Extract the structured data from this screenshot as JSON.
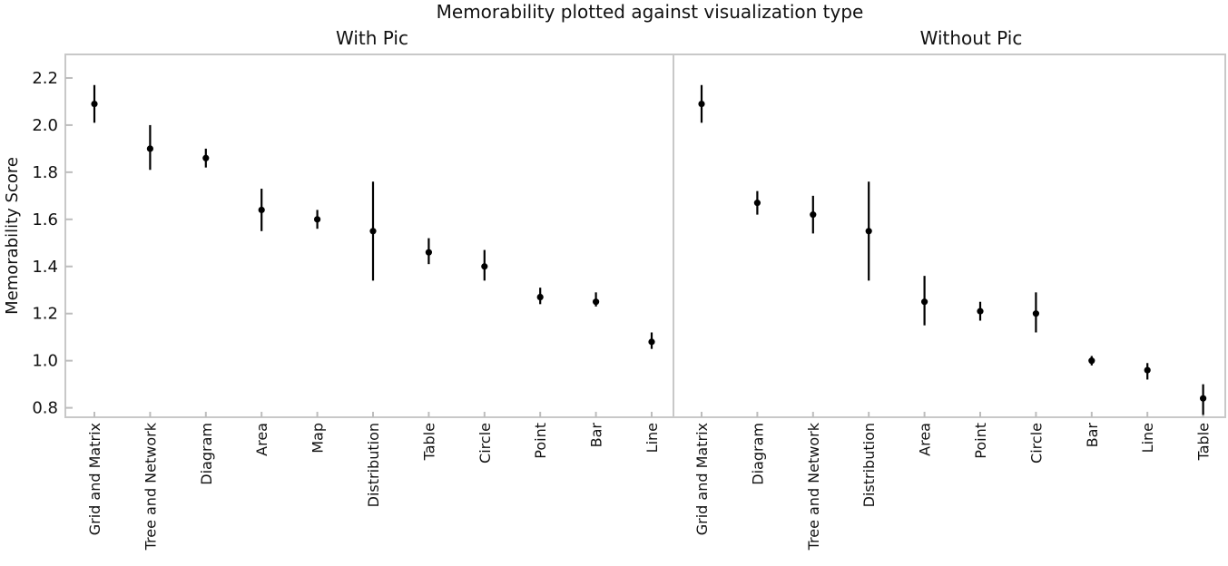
{
  "chart_data": {
    "type": "scatter",
    "title": "Memorability plotted against visualization type",
    "ylabel": "Memorability Score",
    "ylim": [
      0.76,
      2.3
    ],
    "yticks": [
      0.8,
      1.0,
      1.2,
      1.4,
      1.6,
      1.8,
      2.0,
      2.2
    ],
    "ytick_labels": [
      "0.8",
      "1.0",
      "1.2",
      "1.4",
      "1.6",
      "1.8",
      "2.0",
      "2.2"
    ],
    "grid": false,
    "error_bars": true,
    "panels": [
      {
        "title": "With Pic",
        "categories": [
          "Grid and Matrix",
          "Tree and Network",
          "Diagram",
          "Area",
          "Map",
          "Distribution",
          "Table",
          "Circle",
          "Point",
          "Bar",
          "Line"
        ],
        "values": [
          2.09,
          1.9,
          1.86,
          1.64,
          1.6,
          1.55,
          1.46,
          1.4,
          1.27,
          1.25,
          1.08
        ],
        "err_low": [
          2.01,
          1.81,
          1.82,
          1.55,
          1.56,
          1.34,
          1.41,
          1.34,
          1.24,
          1.23,
          1.05
        ],
        "err_high": [
          2.17,
          2.0,
          1.9,
          1.73,
          1.64,
          1.76,
          1.52,
          1.47,
          1.31,
          1.29,
          1.12
        ]
      },
      {
        "title": "Without Pic",
        "categories": [
          "Grid and Matrix",
          "Diagram",
          "Tree and Network",
          "Distribution",
          "Area",
          "Point",
          "Circle",
          "Bar",
          "Line",
          "Table"
        ],
        "values": [
          2.09,
          1.67,
          1.62,
          1.55,
          1.25,
          1.21,
          1.2,
          1.0,
          0.96,
          0.84
        ],
        "err_low": [
          2.01,
          1.62,
          1.54,
          1.34,
          1.15,
          1.17,
          1.12,
          0.98,
          0.92,
          0.77
        ],
        "err_high": [
          2.17,
          1.72,
          1.7,
          1.76,
          1.36,
          1.25,
          1.29,
          1.02,
          0.99,
          0.9
        ]
      }
    ]
  }
}
